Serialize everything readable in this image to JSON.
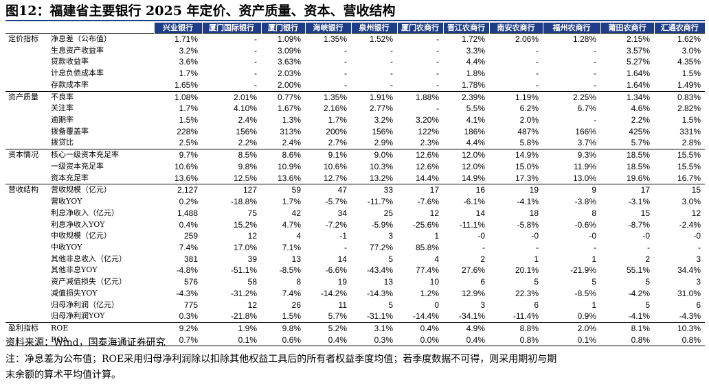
{
  "title": "图12：福建省主要银行 2025 年定价、资产质量、资本、营收结构",
  "banks": [
    "兴业银行",
    "厦门国际银行",
    "厦门银行",
    "海峡银行",
    "泉州银行",
    "厦门农商行",
    "晋江农商行",
    "南安农商行",
    "福州农商行",
    "莆田农商行",
    "汇通农商行"
  ],
  "sections": [
    {
      "name": "定价指标",
      "rows": [
        {
          "metric": "净息差（公布值）",
          "values": [
            "1.71%",
            "-",
            "1.09%",
            "1.35%",
            "1.52%",
            "-",
            "1.72%",
            "2.06%",
            "1.28%",
            "2.15%",
            "1.62%"
          ]
        },
        {
          "metric": "生息资产收益率",
          "values": [
            "3.2%",
            "-",
            "3.09%",
            "-",
            "-",
            "-",
            "3.3%",
            "-",
            "-",
            "3.57%",
            "3.0%"
          ]
        },
        {
          "metric": "贷款收益率",
          "values": [
            "3.6%",
            "-",
            "3.63%",
            "-",
            "-",
            "-",
            "4.4%",
            "-",
            "-",
            "5.27%",
            "4.35%"
          ]
        },
        {
          "metric": "计息负债成本率",
          "values": [
            "1.7%",
            "-",
            "2.03%",
            "-",
            "-",
            "-",
            "1.8%",
            "-",
            "-",
            "1.64%",
            "1.5%"
          ]
        },
        {
          "metric": "存款成本率",
          "values": [
            "1.65%",
            "-",
            "2.00%",
            "-",
            "-",
            "-",
            "1.78%",
            "-",
            "-",
            "1.64%",
            "1.49%"
          ]
        }
      ]
    },
    {
      "name": "资产质量",
      "rows": [
        {
          "metric": "不良率",
          "values": [
            "1.08%",
            "2.01%",
            "0.77%",
            "1.35%",
            "1.91%",
            "1.88%",
            "2.39%",
            "1.19%",
            "2.25%",
            "1.34%",
            "0.83%"
          ]
        },
        {
          "metric": "关注率",
          "values": [
            "1.7%",
            "4.10%",
            "1.67%",
            "2.16%",
            "2.77%",
            "-",
            "5.5%",
            "6.2%",
            "6.7%",
            "4.6%",
            "2.82%"
          ]
        },
        {
          "metric": "逾期率",
          "values": [
            "1.5%",
            "2.4%",
            "1.3%",
            "1.7%",
            "3.2%",
            "3.20%",
            "4.1%",
            "2.0%",
            "-",
            "2.2%",
            "1.5%"
          ]
        },
        {
          "metric": "拨备覆盖率",
          "values": [
            "228%",
            "156%",
            "313%",
            "200%",
            "156%",
            "122%",
            "186%",
            "487%",
            "166%",
            "425%",
            "331%"
          ]
        },
        {
          "metric": "拨贷比",
          "values": [
            "2.5%",
            "2.2%",
            "2.4%",
            "2.7%",
            "2.9%",
            "2.3%",
            "4.4%",
            "5.8%",
            "3.7%",
            "5.7%",
            "2.8%"
          ]
        }
      ]
    },
    {
      "name": "资本情况",
      "rows": [
        {
          "metric": "核心一级资本充足率",
          "values": [
            "9.7%",
            "8.5%",
            "8.6%",
            "9.1%",
            "9.0%",
            "12.6%",
            "12.0%",
            "14.9%",
            "9.3%",
            "18.5%",
            "15.5%"
          ]
        },
        {
          "metric": "一级资本充足率",
          "values": [
            "10.6%",
            "9.8%",
            "10.9%",
            "10.6%",
            "10.3%",
            "12.6%",
            "12.0%",
            "15.0%",
            "11.9%",
            "18.5%",
            "15.5%"
          ]
        },
        {
          "metric": "资本充足率",
          "values": [
            "13.6%",
            "12.5%",
            "13.6%",
            "12.7%",
            "13.2%",
            "14.4%",
            "14.9%",
            "17.3%",
            "13.0%",
            "19.6%",
            "16.7%"
          ]
        }
      ]
    },
    {
      "name": "营收结构",
      "rows": [
        {
          "metric": "营收规模（亿元）",
          "values": [
            "2,127",
            "127",
            "59",
            "47",
            "33",
            "17",
            "16",
            "19",
            "9",
            "17",
            "15"
          ]
        },
        {
          "metric": "营收YOY",
          "values": [
            "0.2%",
            "-18.8%",
            "1.7%",
            "-5.7%",
            "-11.7%",
            "-7.6%",
            "-6.1%",
            "-4.1%",
            "-3.8%",
            "-3.1%",
            "3.0%"
          ]
        },
        {
          "metric": "利息净收入（亿元）",
          "values": [
            "1,488",
            "75",
            "42",
            "34",
            "25",
            "12",
            "14",
            "18",
            "8",
            "15",
            "12"
          ]
        },
        {
          "metric": "利息净收入YOY",
          "values": [
            "0.4%",
            "15.2%",
            "4.7%",
            "-7.2%",
            "-5.9%",
            "-25.6%",
            "-11.1%",
            "-5.8%",
            "-0.6%",
            "-8.7%",
            "-2.4%"
          ]
        },
        {
          "metric": "中收规模（亿元）",
          "values": [
            "259",
            "12",
            "4",
            "-1",
            "3",
            "1",
            "-0",
            "-0",
            "-0",
            "-0",
            "-0"
          ]
        },
        {
          "metric": "中收YOY",
          "values": [
            "7.4%",
            "17.0%",
            "7.1%",
            "-",
            "77.2%",
            "85.8%",
            "-",
            "-",
            "-",
            "-",
            "-"
          ]
        },
        {
          "metric": "其他非息收入（亿元）",
          "values": [
            "381",
            "39",
            "13",
            "14",
            "5",
            "4",
            "2",
            "1",
            "1",
            "2",
            "3"
          ]
        },
        {
          "metric": "其他非息YOY",
          "values": [
            "-4.8%",
            "-51.1%",
            "-8.5%",
            "-6.6%",
            "-43.4%",
            "77.4%",
            "27.6%",
            "20.1%",
            "-21.9%",
            "55.1%",
            "34.4%"
          ]
        },
        {
          "metric": "资产减值损失（亿元）",
          "values": [
            "576",
            "58",
            "8",
            "19",
            "13",
            "10",
            "6",
            "5",
            "5",
            "5",
            "3"
          ]
        },
        {
          "metric": "减值损失YOY",
          "values": [
            "-4.3%",
            "-31.2%",
            "7.4%",
            "-14.2%",
            "-14.3%",
            "1.2%",
            "12.9%",
            "22.3%",
            "-8.5%",
            "-4.2%",
            "31.0%"
          ]
        },
        {
          "metric": "归母净利润（亿元）",
          "values": [
            "775",
            "12",
            "26",
            "11",
            "5",
            "0",
            "3",
            "6",
            "1",
            "5",
            "6"
          ]
        },
        {
          "metric": "归母净利润YOY",
          "values": [
            "0.3%",
            "-21.8%",
            "1.5%",
            "5.7%",
            "-31.1%",
            "-14.4%",
            "-34.1%",
            "-11.4%",
            "0.9%",
            "-4.1%",
            "-4.3%"
          ]
        }
      ]
    },
    {
      "name": "盈利指标",
      "rows": [
        {
          "metric": "ROE",
          "values": [
            "9.2%",
            "1.9%",
            "9.8%",
            "5.2%",
            "3.1%",
            "0.4%",
            "4.9%",
            "8.8%",
            "2.0%",
            "8.1%",
            "10.3%"
          ]
        },
        {
          "metric": "ROA",
          "values": [
            "0.7%",
            "0.1%",
            "0.6%",
            "0.4%",
            "0.3%",
            "0.0%",
            "0.4%",
            "0.8%",
            "0.1%",
            "0.8%",
            "0.8%"
          ]
        }
      ]
    }
  ],
  "source": "资料来源：Wind，国泰海通证券研究",
  "note_line1": "注：净息差为公布值；ROE采用归母净利润除以扣除其他权益工具后的所有者权益季度均值；若季度数据不可得，则采用期初与期",
  "note_line2": "末余额的算术平均值计算。"
}
